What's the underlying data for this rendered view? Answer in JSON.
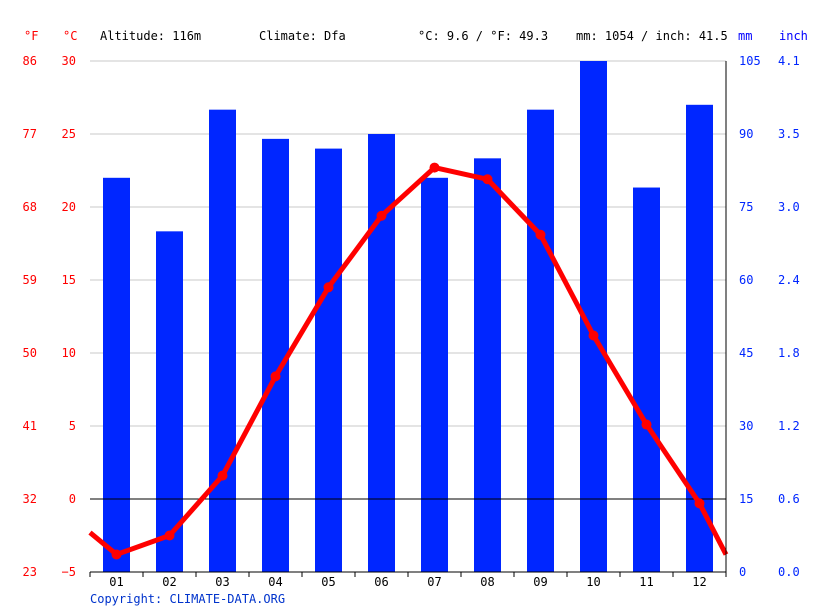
{
  "header": {
    "unit_f": "°F",
    "unit_c": "°C",
    "altitude": "Altitude: 116m",
    "climate": "Climate: Dfa",
    "temp_avg": "°C: 9.6 / °F: 49.3",
    "precip_total": "mm: 1054 / inch: 41.5",
    "unit_mm": "mm",
    "unit_inch": "inch"
  },
  "copyright": "Copyright: CLIMATE-DATA.ORG",
  "colors": {
    "temperature": "#ff0000",
    "precipitation": "#0026ff",
    "grid": "#c8c8c8",
    "zero_line": "#000000"
  },
  "chart_data": {
    "type": "bar+line",
    "categories": [
      "01",
      "02",
      "03",
      "04",
      "05",
      "06",
      "07",
      "08",
      "09",
      "10",
      "11",
      "12"
    ],
    "series": [
      {
        "type": "bar",
        "axis": "right",
        "values": [
          81,
          70,
          95,
          89,
          87,
          90,
          81,
          85,
          95,
          105,
          79,
          96
        ]
      },
      {
        "type": "line",
        "axis": "left",
        "values": [
          -3.8,
          -2.5,
          1.6,
          8.4,
          14.5,
          19.4,
          22.7,
          21.9,
          18.1,
          11.2,
          5.1,
          -0.3
        ]
      }
    ],
    "temp_start_c": -2.3,
    "temp_end_c": -3.8,
    "left_axis_c": {
      "ticks": [
        "30",
        "25",
        "20",
        "15",
        "10",
        "5",
        "0",
        "−5"
      ],
      "values": [
        30,
        25,
        20,
        15,
        10,
        5,
        0,
        -5
      ],
      "ylim": [
        -5,
        30
      ]
    },
    "left_axis_f": {
      "ticks": [
        "86",
        "77",
        "68",
        "59",
        "50",
        "41",
        "32",
        "23"
      ]
    },
    "right_axis_mm": {
      "ticks": [
        "105",
        "90",
        "75",
        "60",
        "45",
        "30",
        "15",
        "0"
      ],
      "values": [
        105,
        90,
        75,
        60,
        45,
        30,
        15,
        0
      ],
      "ylim": [
        0,
        105
      ]
    },
    "right_axis_inch": {
      "ticks": [
        "4.1",
        "3.5",
        "3.0",
        "2.4",
        "1.8",
        "1.2",
        "0.6",
        "0.0"
      ]
    },
    "grid": true
  }
}
